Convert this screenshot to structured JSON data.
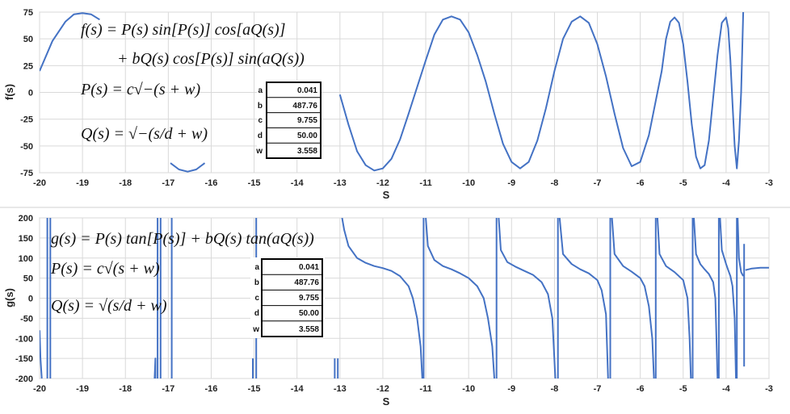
{
  "chart_data": [
    {
      "type": "line",
      "title": "",
      "xlabel": "S",
      "ylabel": "f(s)",
      "xlim": [
        -20,
        -3
      ],
      "ylim": [
        -75,
        75
      ],
      "xticks": [
        "-20",
        "-19",
        "-18",
        "-17",
        "-16",
        "-15",
        "-14",
        "-13",
        "-12",
        "-11",
        "-10",
        "-9",
        "-8",
        "-7",
        "-6",
        "-5",
        "-4",
        "-3"
      ],
      "yticks": [
        "75",
        "50",
        "25",
        "0",
        "-25",
        "-50",
        "-75"
      ],
      "grid": true,
      "color": "#4472C4",
      "equations": [
        "f(s) = P(s) sin[P(s)] cos[aQ(s)]",
        "+ bQ(s) cos[P(s)] sin(aQ(s))",
        "P(s) = c√−(s + w)",
        "Q(s) = √−(s/d + w)"
      ],
      "params": {
        "labels": [
          "a",
          "b",
          "c",
          "d",
          "w"
        ],
        "values": [
          "0.041",
          "487.76",
          "9.755",
          "50.00",
          "3.558"
        ]
      },
      "segments": [
        [
          [
            -20.0,
            20
          ],
          [
            -19.7,
            48
          ],
          [
            -19.4,
            66
          ],
          [
            -19.2,
            73
          ],
          [
            -19.0,
            74
          ],
          [
            -18.8,
            73
          ],
          [
            -18.6,
            68
          ]
        ],
        [
          [
            -16.95,
            -66
          ],
          [
            -16.75,
            -72
          ],
          [
            -16.55,
            -74
          ],
          [
            -16.35,
            -72
          ],
          [
            -16.15,
            -66
          ]
        ],
        [
          [
            -13.0,
            -2
          ],
          [
            -12.8,
            -30
          ],
          [
            -12.6,
            -55
          ],
          [
            -12.4,
            -68
          ],
          [
            -12.2,
            -73
          ],
          [
            -12.0,
            -71
          ],
          [
            -11.8,
            -62
          ],
          [
            -11.6,
            -44
          ],
          [
            -11.4,
            -20
          ],
          [
            -11.2,
            5
          ],
          [
            -11.0,
            30
          ],
          [
            -10.8,
            54
          ],
          [
            -10.6,
            68
          ],
          [
            -10.4,
            71
          ],
          [
            -10.2,
            68
          ],
          [
            -10.0,
            56
          ],
          [
            -9.8,
            35
          ],
          [
            -9.6,
            10
          ],
          [
            -9.4,
            -20
          ],
          [
            -9.2,
            -48
          ],
          [
            -9.0,
            -65
          ],
          [
            -8.8,
            -71
          ],
          [
            -8.6,
            -65
          ],
          [
            -8.4,
            -45
          ],
          [
            -8.2,
            -15
          ],
          [
            -8.0,
            20
          ],
          [
            -7.8,
            50
          ],
          [
            -7.6,
            66
          ],
          [
            -7.4,
            71
          ],
          [
            -7.2,
            65
          ],
          [
            -7.0,
            45
          ],
          [
            -6.8,
            15
          ],
          [
            -6.6,
            -20
          ],
          [
            -6.4,
            -52
          ],
          [
            -6.2,
            -69
          ],
          [
            -6.0,
            -65
          ],
          [
            -5.8,
            -40
          ],
          [
            -5.6,
            0
          ],
          [
            -5.5,
            20
          ],
          [
            -5.4,
            50
          ],
          [
            -5.3,
            66
          ],
          [
            -5.2,
            70
          ],
          [
            -5.1,
            65
          ],
          [
            -5.0,
            45
          ],
          [
            -4.9,
            10
          ],
          [
            -4.8,
            -30
          ],
          [
            -4.7,
            -60
          ],
          [
            -4.6,
            -71
          ],
          [
            -4.5,
            -68
          ],
          [
            -4.4,
            -45
          ],
          [
            -4.3,
            -5
          ],
          [
            -4.2,
            35
          ],
          [
            -4.1,
            65
          ],
          [
            -4.0,
            70
          ],
          [
            -3.95,
            60
          ],
          [
            -3.9,
            30
          ],
          [
            -3.85,
            -10
          ],
          [
            -3.8,
            -50
          ],
          [
            -3.75,
            -71
          ],
          [
            -3.7,
            -45
          ],
          [
            -3.65,
            0
          ],
          [
            -3.6,
            75
          ]
        ]
      ]
    },
    {
      "type": "line",
      "title": "",
      "xlabel": "S",
      "ylabel": "g(s)",
      "xlim": [
        -20,
        -3
      ],
      "ylim": [
        -200,
        200
      ],
      "xticks": [
        "-20",
        "-19",
        "-18",
        "-17",
        "-16",
        "-15",
        "-14",
        "-13",
        "-12",
        "-11",
        "-10",
        "-9",
        "-8",
        "-7",
        "-6",
        "-5",
        "-4",
        "-3"
      ],
      "yticks": [
        "200",
        "150",
        "100",
        "50",
        "0",
        "-50",
        "-100",
        "-150",
        "-200"
      ],
      "grid": true,
      "color": "#4472C4",
      "equations": [
        "g(s) = P(s) tan[P(s)] + bQ(s) tan(aQ(s))",
        "P(s) = c√(s + w)",
        "Q(s) = √(s/d + w)"
      ],
      "params": {
        "labels": [
          "a",
          "b",
          "c",
          "d",
          "w"
        ],
        "values": [
          "0.041",
          "487.76",
          "9.755",
          "50.00",
          "3.558"
        ]
      },
      "segments": [
        [
          [
            -20.0,
            -80
          ],
          [
            -19.98,
            -150
          ],
          [
            -19.95,
            -200
          ]
        ],
        [
          [
            -19.82,
            200
          ],
          [
            -19.82,
            -200
          ]
        ],
        [
          [
            -19.75,
            200
          ],
          [
            -19.75,
            -200
          ]
        ],
        [
          [
            -17.32,
            -200
          ],
          [
            -17.3,
            -150
          ],
          [
            -17.3,
            -200
          ]
        ],
        [
          [
            -17.25,
            200
          ],
          [
            -17.25,
            -200
          ]
        ],
        [
          [
            -17.18,
            200
          ],
          [
            -17.18,
            -200
          ]
        ],
        [
          [
            -16.92,
            200
          ],
          [
            -16.92,
            -200
          ]
        ],
        [
          [
            -15.03,
            -200
          ],
          [
            -15.03,
            -150
          ]
        ],
        [
          [
            -14.95,
            200
          ],
          [
            -14.95,
            -200
          ]
        ],
        [
          [
            -13.12,
            -200
          ],
          [
            -13.12,
            -150
          ]
        ],
        [
          [
            -13.05,
            -200
          ],
          [
            -13.05,
            -150
          ]
        ],
        [
          [
            -12.95,
            200
          ],
          [
            -12.9,
            170
          ],
          [
            -12.8,
            130
          ],
          [
            -12.6,
            100
          ],
          [
            -12.4,
            88
          ],
          [
            -12.2,
            80
          ],
          [
            -12.0,
            75
          ],
          [
            -11.8,
            68
          ],
          [
            -11.6,
            55
          ],
          [
            -11.4,
            30
          ],
          [
            -11.3,
            0
          ],
          [
            -11.2,
            -50
          ],
          [
            -11.12,
            -120
          ],
          [
            -11.08,
            -200
          ]
        ],
        [
          [
            -11.05,
            200
          ],
          [
            -11.05,
            -200
          ]
        ],
        [
          [
            -11.0,
            200
          ],
          [
            -10.95,
            130
          ],
          [
            -10.8,
            95
          ],
          [
            -10.6,
            80
          ],
          [
            -10.4,
            72
          ],
          [
            -10.2,
            62
          ],
          [
            -10.0,
            50
          ],
          [
            -9.8,
            30
          ],
          [
            -9.65,
            0
          ],
          [
            -9.55,
            -50
          ],
          [
            -9.45,
            -120
          ],
          [
            -9.4,
            -200
          ]
        ],
        [
          [
            -9.35,
            200
          ],
          [
            -9.35,
            -200
          ]
        ],
        [
          [
            -9.3,
            200
          ],
          [
            -9.25,
            120
          ],
          [
            -9.1,
            90
          ],
          [
            -8.9,
            78
          ],
          [
            -8.7,
            68
          ],
          [
            -8.5,
            58
          ],
          [
            -8.3,
            40
          ],
          [
            -8.15,
            10
          ],
          [
            -8.05,
            -50
          ],
          [
            -7.98,
            -200
          ]
        ],
        [
          [
            -7.92,
            200
          ],
          [
            -7.92,
            -200
          ]
        ],
        [
          [
            -7.88,
            200
          ],
          [
            -7.8,
            110
          ],
          [
            -7.6,
            85
          ],
          [
            -7.4,
            72
          ],
          [
            -7.2,
            62
          ],
          [
            -7.0,
            45
          ],
          [
            -6.9,
            20
          ],
          [
            -6.8,
            -40
          ],
          [
            -6.75,
            -200
          ]
        ],
        [
          [
            -6.7,
            200
          ],
          [
            -6.7,
            -200
          ]
        ],
        [
          [
            -6.66,
            200
          ],
          [
            -6.6,
            110
          ],
          [
            -6.4,
            80
          ],
          [
            -6.2,
            66
          ],
          [
            -6.0,
            50
          ],
          [
            -5.9,
            30
          ],
          [
            -5.8,
            -20
          ],
          [
            -5.72,
            -100
          ],
          [
            -5.68,
            -200
          ]
        ],
        [
          [
            -5.64,
            200
          ],
          [
            -5.64,
            -200
          ]
        ],
        [
          [
            -5.6,
            200
          ],
          [
            -5.55,
            110
          ],
          [
            -5.4,
            80
          ],
          [
            -5.2,
            65
          ],
          [
            -5.0,
            45
          ],
          [
            -4.9,
            0
          ],
          [
            -4.85,
            -100
          ],
          [
            -4.82,
            -200
          ]
        ],
        [
          [
            -4.78,
            200
          ],
          [
            -4.78,
            -200
          ]
        ],
        [
          [
            -4.75,
            200
          ],
          [
            -4.7,
            110
          ],
          [
            -4.6,
            85
          ],
          [
            -4.5,
            72
          ],
          [
            -4.4,
            60
          ],
          [
            -4.3,
            40
          ],
          [
            -4.25,
            0
          ],
          [
            -4.2,
            -200
          ]
        ],
        [
          [
            -4.17,
            200
          ],
          [
            -4.17,
            -200
          ]
        ],
        [
          [
            -4.14,
            200
          ],
          [
            -4.1,
            120
          ],
          [
            -4.0,
            85
          ],
          [
            -3.95,
            70
          ],
          [
            -3.9,
            55
          ],
          [
            -3.85,
            30
          ],
          [
            -3.8,
            -50
          ],
          [
            -3.77,
            -200
          ]
        ],
        [
          [
            -3.75,
            200
          ],
          [
            -3.75,
            -200
          ]
        ],
        [
          [
            -3.73,
            200
          ],
          [
            -3.7,
            100
          ],
          [
            -3.65,
            65
          ],
          [
            -3.6,
            55
          ]
        ],
        [
          [
            -3.58,
            135
          ],
          [
            -3.58,
            -170
          ]
        ],
        [
          [
            -3.55,
            70
          ],
          [
            -3.4,
            74
          ],
          [
            -3.2,
            76
          ],
          [
            -3.0,
            76
          ]
        ]
      ]
    }
  ]
}
